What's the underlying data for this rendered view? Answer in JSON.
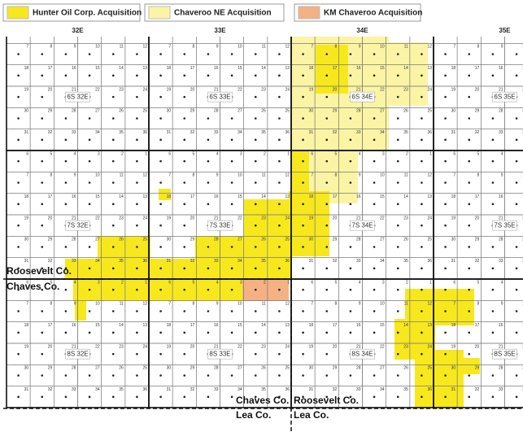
{
  "legend": [
    {
      "label": "Hunter Oil Corp. Acquisition",
      "color": "#f7e81e"
    },
    {
      "label": "Chaveroo NE Acquisition",
      "color": "#fbf4a4"
    },
    {
      "label": "KM Chaveroo Acquisition",
      "color": "#f4b183"
    }
  ],
  "ranges": [
    "32E",
    "33E",
    "34E",
    "35E"
  ],
  "townships": [
    [
      "6S 32E",
      "6S 33E",
      "6S 34E",
      "6S 35E"
    ],
    [
      "7S 32E",
      "7S 33E",
      "7S 34E",
      "7S 35E"
    ],
    [
      "8S 32E",
      "8S 33E",
      "8S 34E",
      "8S 35E"
    ]
  ],
  "section_numbers": [
    [
      6,
      5,
      4,
      3,
      2,
      1
    ],
    [
      7,
      8,
      9,
      10,
      11,
      12
    ],
    [
      18,
      17,
      16,
      15,
      14,
      13
    ],
    [
      19,
      20,
      21,
      22,
      23,
      24
    ],
    [
      30,
      29,
      28,
      27,
      26,
      25
    ],
    [
      31,
      32,
      33,
      34,
      35,
      36
    ]
  ],
  "counties": {
    "upper_left": "Roosevelt Co.",
    "lower_left": "Chaves Co.",
    "south_left": "Chaves Co.",
    "south_right": "Roosevelt Co.",
    "lea_left": "Lea Co.",
    "lea_right": "Lea Co."
  }
}
